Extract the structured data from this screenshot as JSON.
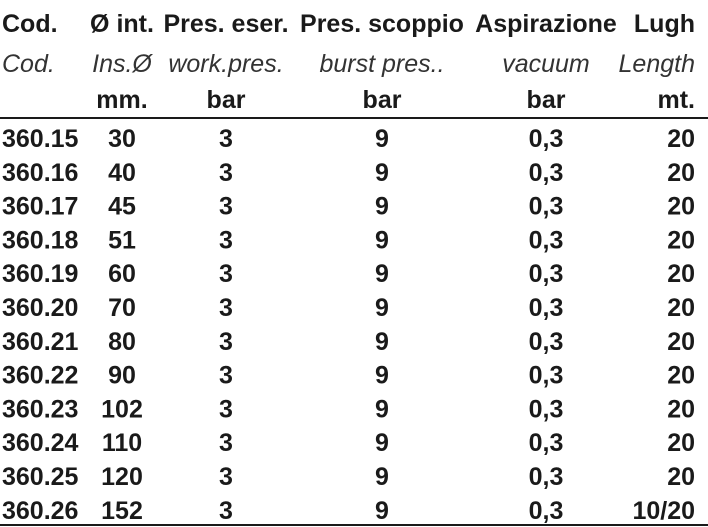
{
  "header_rows": [
    [
      "Cod.",
      "Ø int.",
      "Pres. eser.",
      "Pres. scoppio",
      "Aspirazione",
      "Lugh"
    ],
    [
      "Cod.",
      "Ins.Ø",
      "work.pres.",
      "burst pres..",
      "vacuum",
      "Length"
    ],
    [
      null,
      "mm.",
      "bar",
      "bar",
      "bar",
      "mt."
    ]
  ],
  "rows": [
    [
      "360.15",
      "30",
      "3",
      "9",
      "0,3",
      "20"
    ],
    [
      "360.16",
      "40",
      "3",
      "9",
      "0,3",
      "20"
    ],
    [
      "360.17",
      "45",
      "3",
      "9",
      "0,3",
      "20"
    ],
    [
      "360.18",
      "51",
      "3",
      "9",
      "0,3",
      "20"
    ],
    [
      "360.19",
      "60",
      "3",
      "9",
      "0,3",
      "20"
    ],
    [
      "360.20",
      "70",
      "3",
      "9",
      "0,3",
      "20"
    ],
    [
      "360.21",
      "80",
      "3",
      "9",
      "0,3",
      "20"
    ],
    [
      "360.22",
      "90",
      "3",
      "9",
      "0,3",
      "20"
    ],
    [
      "360.23",
      "102",
      "3",
      "9",
      "0,3",
      "20"
    ],
    [
      "360.24",
      "110",
      "3",
      "9",
      "0,3",
      "20"
    ],
    [
      "360.25",
      "120",
      "3",
      "9",
      "0,3",
      "20"
    ],
    [
      "360.26",
      "152",
      "3",
      "9",
      "0,3",
      "10/20"
    ]
  ]
}
